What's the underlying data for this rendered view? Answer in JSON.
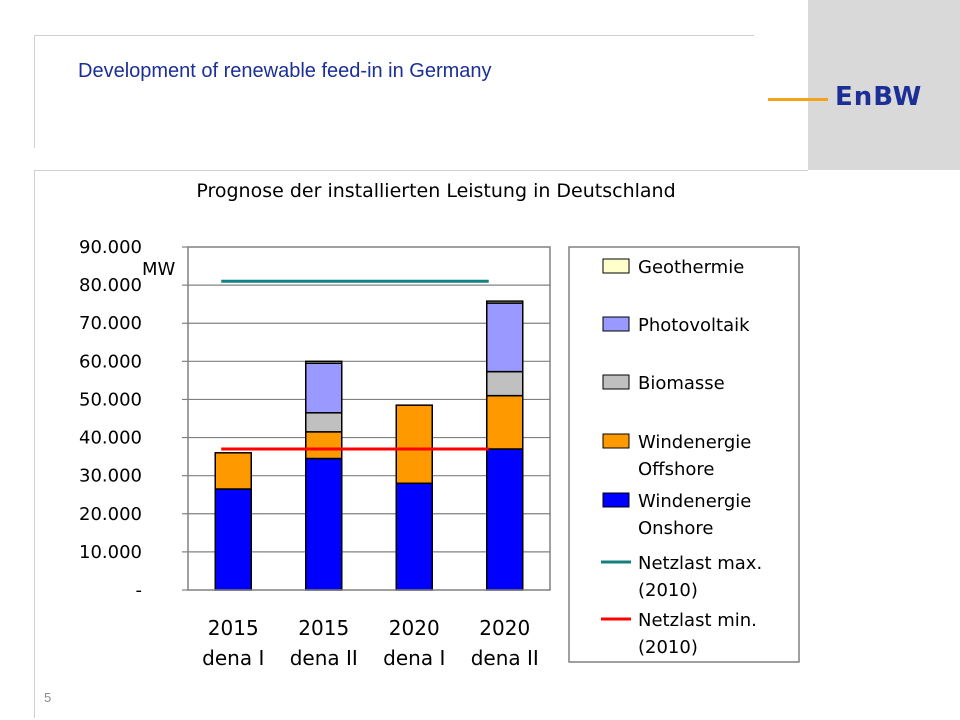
{
  "slide": {
    "title": "Development of renewable feed-in in Germany",
    "page_number": "5"
  },
  "logo": {
    "text": "EnBW",
    "brand_color": "#1b2f96",
    "accent_color": "#f5a21b"
  },
  "chart_data": {
    "type": "bar",
    "stacked": true,
    "title": "Prognose der installierten Leistung in Deutschland",
    "unit_label": "MW",
    "ylim": [
      0,
      90000
    ],
    "yticks": [
      {
        "value": 90000,
        "label": "90.000"
      },
      {
        "value": 80000,
        "label": "80.000"
      },
      {
        "value": 70000,
        "label": "70.000"
      },
      {
        "value": 60000,
        "label": "60.000"
      },
      {
        "value": 50000,
        "label": "50.000"
      },
      {
        "value": 40000,
        "label": "40.000"
      },
      {
        "value": 30000,
        "label": "30.000"
      },
      {
        "value": 20000,
        "label": "20.000"
      },
      {
        "value": 10000,
        "label": "10.000"
      },
      {
        "value": 0,
        "label": "-"
      }
    ],
    "grid": true,
    "categories": [
      {
        "line1": "2015",
        "line2": "dena I"
      },
      {
        "line1": "2015",
        "line2": "dena II"
      },
      {
        "line1": "2020",
        "line2": "dena I"
      },
      {
        "line1": "2020",
        "line2": "dena II"
      }
    ],
    "series": [
      {
        "name": "Windenergie Onshore",
        "color": "#0000ff",
        "values": [
          26500,
          34500,
          28000,
          37000
        ]
      },
      {
        "name": "Windenergie Offshore",
        "color": "#ff9900",
        "values": [
          9500,
          7000,
          20500,
          14000
        ]
      },
      {
        "name": "Biomasse",
        "color": "#c0c0c0",
        "values": [
          0,
          5000,
          0,
          6300
        ]
      },
      {
        "name": "Photovoltaik",
        "color": "#9999ff",
        "values": [
          0,
          13000,
          0,
          18000
        ]
      },
      {
        "name": "Geothermie",
        "color": "#ffffcc",
        "values": [
          0,
          500,
          0,
          500
        ]
      }
    ],
    "reference_lines": [
      {
        "name_line1": "Netzlast max.",
        "name_line2": "(2010)",
        "value": 81000,
        "color": "#138080"
      },
      {
        "name_line1": "Netzlast min.",
        "name_line2": "(2010)",
        "value": 37000,
        "color": "#ff0000"
      }
    ],
    "legend": {
      "placement": "right",
      "items": [
        {
          "kind": "box",
          "color": "#ffffcc",
          "line1": "Geothermie",
          "line2": ""
        },
        {
          "kind": "box",
          "color": "#9999ff",
          "line1": "Photovoltaik",
          "line2": ""
        },
        {
          "kind": "box",
          "color": "#c0c0c0",
          "line1": "Biomasse",
          "line2": ""
        },
        {
          "kind": "box",
          "color": "#ff9900",
          "line1": "Windenergie",
          "line2": "Offshore"
        },
        {
          "kind": "box",
          "color": "#0000ff",
          "line1": "Windenergie",
          "line2": "Onshore"
        },
        {
          "kind": "line",
          "color": "#138080",
          "line1": "Netzlast max.",
          "line2": "(2010)"
        },
        {
          "kind": "line",
          "color": "#ff0000",
          "line1": "Netzlast min.",
          "line2": "(2010)"
        }
      ]
    }
  }
}
